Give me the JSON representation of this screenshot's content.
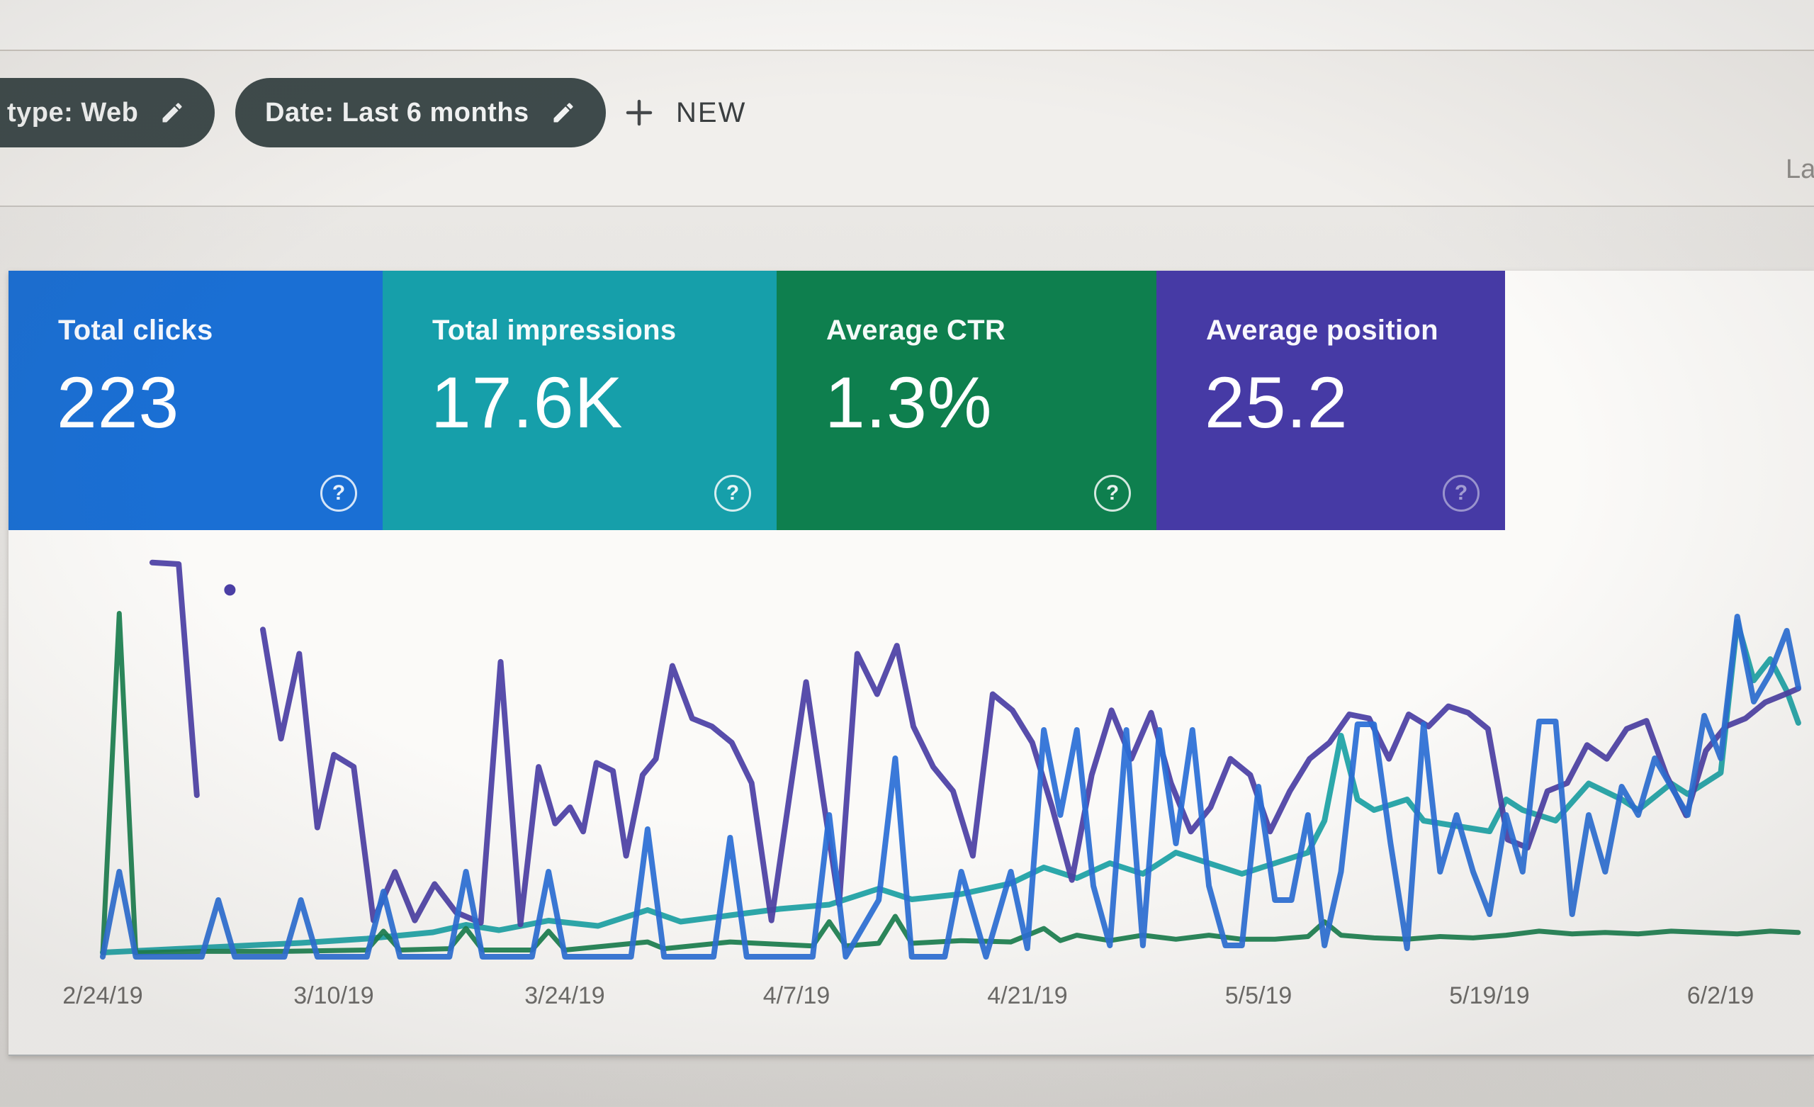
{
  "toolbar": {
    "chips": [
      {
        "label": "type: Web",
        "note": "cut off at left screen edge"
      },
      {
        "label": "Date: Last 6 months"
      }
    ],
    "new_button_label": "NEW",
    "top_right_partial_text": "La"
  },
  "metric_cards": [
    {
      "title": "Total clicks",
      "value": "223",
      "color": "#1a6fd4"
    },
    {
      "title": "Total impressions",
      "value": "17.6K",
      "color": "#169faa"
    },
    {
      "title": "Average CTR",
      "value": "1.3%",
      "color": "#0e7f4e"
    },
    {
      "title": "Average position",
      "value": "25.2",
      "color": "#463aa5"
    }
  ],
  "ui": {
    "help_glyph": "?"
  },
  "theme": {
    "chip_bg": "#3e4a4b",
    "page_bg": "#e7e5e2",
    "card_bg": "#fbfaf8",
    "divider": "#c9c6c1",
    "axis_text": "#6d6c6a"
  },
  "chart_data": {
    "type": "line",
    "title": "",
    "xlabel": "",
    "ylabel": "",
    "grid": false,
    "legend": false,
    "x_axis": {
      "unit": "day index from 2/24/19",
      "tick_labels": [
        "2/24/19",
        "3/10/19",
        "3/24/19",
        "4/7/19",
        "4/21/19",
        "5/5/19",
        "5/19/19",
        "6/2/19"
      ],
      "tick_days": [
        0,
        14,
        28,
        42,
        56,
        70,
        84,
        98
      ]
    },
    "y_axis": {
      "ticks_visible": false,
      "note": "values estimated from line positions; totals shown in metric tiles"
    },
    "series": [
      {
        "name": "Clicks",
        "color": "#2b6fd6",
        "unit": "clicks/day",
        "points": [
          [
            0,
            0
          ],
          [
            1,
            3
          ],
          [
            2,
            0
          ],
          [
            6,
            0
          ],
          [
            7,
            2
          ],
          [
            8,
            0
          ],
          [
            11,
            0
          ],
          [
            12,
            2
          ],
          [
            13,
            0
          ],
          [
            16,
            0
          ],
          [
            17,
            2.3
          ],
          [
            18,
            0
          ],
          [
            21,
            0
          ],
          [
            22,
            3
          ],
          [
            23,
            0
          ],
          [
            26,
            0
          ],
          [
            27,
            3
          ],
          [
            28,
            0
          ],
          [
            32,
            0
          ],
          [
            33,
            4.5
          ],
          [
            34,
            0
          ],
          [
            37,
            0
          ],
          [
            38,
            4.2
          ],
          [
            39,
            0
          ],
          [
            43,
            0
          ],
          [
            44,
            5
          ],
          [
            45,
            0
          ],
          [
            47,
            2
          ],
          [
            48,
            7
          ],
          [
            49,
            0
          ],
          [
            51,
            0
          ],
          [
            52,
            3
          ],
          [
            53.5,
            0
          ],
          [
            55,
            3
          ],
          [
            56,
            0.3
          ],
          [
            57,
            8
          ],
          [
            58,
            5
          ],
          [
            59,
            8
          ],
          [
            60,
            2.5
          ],
          [
            61,
            0.4
          ],
          [
            62,
            8
          ],
          [
            63,
            0.4
          ],
          [
            64,
            8
          ],
          [
            65,
            4
          ],
          [
            66,
            8
          ],
          [
            67,
            2.5
          ],
          [
            68,
            0.4
          ],
          [
            69,
            0.4
          ],
          [
            70,
            6
          ],
          [
            71,
            2
          ],
          [
            72,
            2
          ],
          [
            73,
            5
          ],
          [
            74,
            0.4
          ],
          [
            75,
            3
          ],
          [
            76,
            8.2
          ],
          [
            77,
            8.2
          ],
          [
            78,
            4
          ],
          [
            79,
            0.3
          ],
          [
            80,
            8.2
          ],
          [
            81,
            3
          ],
          [
            82,
            5
          ],
          [
            83,
            3
          ],
          [
            84,
            1.5
          ],
          [
            85,
            5
          ],
          [
            86,
            3
          ],
          [
            87,
            8.3
          ],
          [
            88,
            8.3
          ],
          [
            89,
            1.5
          ],
          [
            90,
            5
          ],
          [
            91,
            3
          ],
          [
            92,
            6
          ],
          [
            93,
            5
          ],
          [
            94,
            7
          ],
          [
            95,
            6
          ],
          [
            96,
            5
          ],
          [
            97,
            8.5
          ],
          [
            98,
            7
          ],
          [
            99,
            12
          ],
          [
            100,
            9
          ],
          [
            101,
            10
          ],
          [
            102,
            11.5
          ],
          [
            102.7,
            9.5
          ]
        ]
      },
      {
        "name": "Impressions",
        "color": "#1ca2a6",
        "unit": "impressions/day",
        "points": [
          [
            0,
            8
          ],
          [
            4,
            14
          ],
          [
            8,
            20
          ],
          [
            12,
            26
          ],
          [
            16,
            34
          ],
          [
            20,
            46
          ],
          [
            22,
            60
          ],
          [
            24,
            50
          ],
          [
            27,
            68
          ],
          [
            30,
            58
          ],
          [
            33,
            88
          ],
          [
            35,
            66
          ],
          [
            38,
            78
          ],
          [
            41,
            90
          ],
          [
            44,
            98
          ],
          [
            47,
            128
          ],
          [
            49,
            108
          ],
          [
            52,
            118
          ],
          [
            55,
            138
          ],
          [
            57,
            168
          ],
          [
            59,
            148
          ],
          [
            61,
            176
          ],
          [
            63,
            156
          ],
          [
            65,
            196
          ],
          [
            67,
            176
          ],
          [
            69,
            156
          ],
          [
            71,
            176
          ],
          [
            73,
            196
          ],
          [
            74,
            256
          ],
          [
            75,
            416
          ],
          [
            76,
            296
          ],
          [
            77,
            276
          ],
          [
            79,
            296
          ],
          [
            80,
            256
          ],
          [
            82,
            246
          ],
          [
            84,
            236
          ],
          [
            85,
            296
          ],
          [
            86,
            276
          ],
          [
            88,
            256
          ],
          [
            90,
            326
          ],
          [
            92,
            296
          ],
          [
            93,
            276
          ],
          [
            95,
            326
          ],
          [
            96,
            306
          ],
          [
            98,
            346
          ],
          [
            99,
            630
          ],
          [
            100,
            520
          ],
          [
            101,
            560
          ],
          [
            102,
            500
          ],
          [
            102.7,
            440
          ]
        ]
      },
      {
        "name": "CTR",
        "color": "#1a7f4f",
        "unit": "percent",
        "points": [
          [
            0,
            0.3
          ],
          [
            1,
            25.5
          ],
          [
            2,
            0.3
          ],
          [
            6,
            0.4
          ],
          [
            11,
            0.4
          ],
          [
            16,
            0.5
          ],
          [
            17,
            1.9
          ],
          [
            18,
            0.5
          ],
          [
            21,
            0.6
          ],
          [
            22,
            2.1
          ],
          [
            23,
            0.5
          ],
          [
            26,
            0.5
          ],
          [
            27,
            1.9
          ],
          [
            28,
            0.5
          ],
          [
            33,
            1.1
          ],
          [
            34,
            0.6
          ],
          [
            38,
            1.1
          ],
          [
            43,
            0.8
          ],
          [
            44,
            2.6
          ],
          [
            45,
            0.8
          ],
          [
            47,
            1
          ],
          [
            48,
            3
          ],
          [
            49,
            1
          ],
          [
            52,
            1.2
          ],
          [
            55,
            1.1
          ],
          [
            57,
            2.1
          ],
          [
            58,
            1.2
          ],
          [
            59,
            1.6
          ],
          [
            61,
            1.2
          ],
          [
            63,
            1.6
          ],
          [
            65,
            1.3
          ],
          [
            67,
            1.6
          ],
          [
            69,
            1.3
          ],
          [
            71,
            1.3
          ],
          [
            73,
            1.5
          ],
          [
            74,
            2.6
          ],
          [
            75,
            1.6
          ],
          [
            77,
            1.4
          ],
          [
            79,
            1.3
          ],
          [
            81,
            1.5
          ],
          [
            83,
            1.4
          ],
          [
            85,
            1.6
          ],
          [
            87,
            1.9
          ],
          [
            89,
            1.7
          ],
          [
            91,
            1.8
          ],
          [
            93,
            1.7
          ],
          [
            95,
            1.9
          ],
          [
            97,
            1.8
          ],
          [
            99,
            1.7
          ],
          [
            101,
            1.9
          ],
          [
            102.7,
            1.8
          ]
        ]
      },
      {
        "name": "Position",
        "color": "#4b3fa5",
        "unit": "average position (lower is better)",
        "segments": [
          [
            [
              3,
              1.2
            ],
            [
              4.6,
              1.4
            ],
            [
              5.7,
              30
            ]
          ],
          [
            [
              9.7,
              9.5
            ],
            [
              10.8,
              23
            ],
            [
              11.9,
              12.5
            ],
            [
              13,
              34
            ],
            [
              14,
              25
            ],
            [
              15.2,
              26.5
            ],
            [
              16.4,
              45.5
            ],
            [
              17.7,
              39.5
            ],
            [
              18.9,
              45.5
            ],
            [
              20.1,
              41
            ],
            [
              21.4,
              44.5
            ],
            [
              22.9,
              45.8
            ],
            [
              24.1,
              13.5
            ],
            [
              25.3,
              46
            ],
            [
              26.4,
              26.5
            ],
            [
              27.4,
              33.5
            ],
            [
              28.3,
              31.5
            ],
            [
              29.1,
              34.5
            ],
            [
              29.9,
              26
            ],
            [
              30.9,
              27
            ],
            [
              31.7,
              37.5
            ],
            [
              32.7,
              27.5
            ],
            [
              33.5,
              25.5
            ],
            [
              34.5,
              14
            ],
            [
              35.7,
              20.5
            ],
            [
              36.9,
              21.5
            ],
            [
              38.1,
              23.5
            ],
            [
              39.3,
              28.5
            ],
            [
              40.5,
              45.5
            ],
            [
              41.6,
              30
            ],
            [
              42.6,
              16
            ],
            [
              43.6,
              30
            ],
            [
              44.6,
              43.5
            ],
            [
              45.7,
              12.5
            ],
            [
              46.9,
              17.5
            ],
            [
              48.1,
              11.5
            ],
            [
              49.1,
              21.5
            ],
            [
              50.3,
              26.5
            ],
            [
              51.5,
              29.5
            ],
            [
              52.7,
              37.5
            ],
            [
              53.9,
              17.5
            ],
            [
              55.1,
              19.5
            ],
            [
              56.3,
              23.5
            ],
            [
              57.5,
              31.5
            ],
            [
              58.7,
              40.5
            ],
            [
              59.9,
              27.5
            ],
            [
              61.1,
              19.5
            ],
            [
              62.3,
              25.5
            ],
            [
              63.5,
              19.8
            ],
            [
              64.7,
              28.5
            ],
            [
              65.9,
              34.5
            ],
            [
              67.1,
              31.5
            ],
            [
              68.3,
              25.5
            ],
            [
              69.5,
              27.5
            ],
            [
              70.7,
              34.5
            ],
            [
              71.9,
              29.5
            ],
            [
              73.1,
              25.5
            ],
            [
              74.3,
              23.5
            ],
            [
              75.5,
              20
            ],
            [
              76.7,
              20.5
            ],
            [
              77.9,
              25.5
            ],
            [
              79.1,
              20
            ],
            [
              80.3,
              21.5
            ],
            [
              81.5,
              19
            ],
            [
              82.7,
              19.8
            ],
            [
              83.9,
              21.8
            ],
            [
              85.1,
              35.5
            ],
            [
              86.3,
              36.5
            ],
            [
              87.5,
              29.5
            ],
            [
              88.7,
              28.5
            ],
            [
              89.9,
              23.8
            ],
            [
              91.1,
              25.5
            ],
            [
              92.3,
              21.8
            ],
            [
              93.5,
              20.8
            ],
            [
              94.7,
              27.5
            ],
            [
              95.9,
              32.5
            ],
            [
              97.1,
              24.5
            ],
            [
              98.3,
              21.5
            ],
            [
              99.5,
              20.5
            ],
            [
              100.7,
              18.5
            ],
            [
              101.9,
              17.5
            ],
            [
              102.7,
              16.8
            ]
          ]
        ],
        "isolated_point": [
          7.7,
          4.6
        ]
      }
    ]
  }
}
